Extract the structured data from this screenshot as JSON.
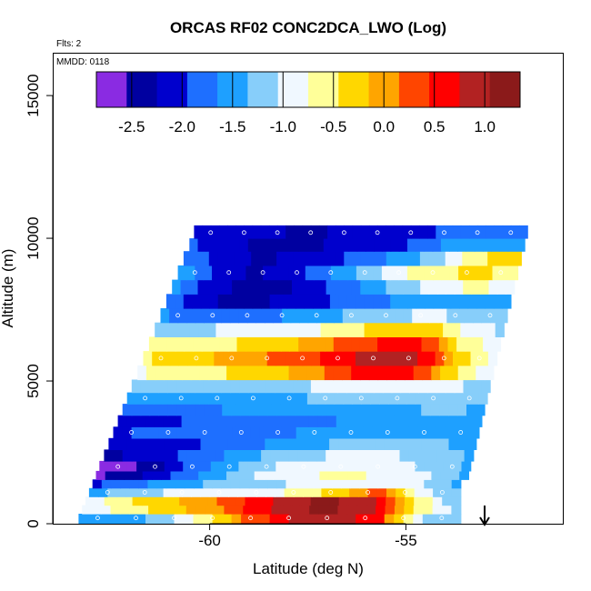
{
  "chart_data": {
    "type": "heatmap",
    "title": "ORCAS RF02 CONC2DCA_LWO (Log)",
    "annotations": [
      "Flts: 2",
      "MMDD: 0118"
    ],
    "xlabel": "Latitude (deg N)",
    "ylabel": "Altitude (m)",
    "xlim": [
      -64,
      -51
    ],
    "ylim": [
      0,
      16500
    ],
    "x_ticks": [
      -60,
      -55
    ],
    "y_ticks": [
      0,
      5000,
      10000,
      15000
    ],
    "x_tick_labels": [
      "-60",
      "-55"
    ],
    "y_tick_labels": [
      "0",
      "5000",
      "10000",
      "15000"
    ],
    "colorbar": {
      "range": [
        -2.85,
        1.35
      ],
      "ticks": [
        -2.5,
        -2.0,
        -1.5,
        -1.0,
        -0.5,
        0.0,
        0.5,
        1.0
      ],
      "tick_labels": [
        "-2.5",
        "-2.0",
        "-1.5",
        "-1.0",
        "-0.5",
        "0.0",
        "0.5",
        "1.0"
      ],
      "colors": [
        "#8A2BE2",
        "#0000A0",
        "#0000CD",
        "#1E6FFF",
        "#1EA0FF",
        "#87CEFA",
        "#F0F8FF",
        "#FFFF99",
        "#FFD700",
        "#FFA500",
        "#FF4500",
        "#FF0000",
        "#B22222",
        "#8B1A1A"
      ]
    },
    "layers": [
      {
        "alt": 200,
        "values": [
          -1.5,
          -1.5,
          -1.2,
          -0.5,
          0.2,
          0.8,
          1.0,
          0.6,
          -1.0,
          -1.3
        ]
      },
      {
        "alt": 500,
        "values": [
          -1.0,
          -0.6,
          -0.3,
          0.0,
          0.5,
          1.0,
          1.1,
          0.8,
          -0.5,
          -1.2
        ]
      },
      {
        "alt": 800,
        "values": [
          -0.9,
          -0.5,
          -0.2,
          0.1,
          0.5,
          1.0,
          1.1,
          0.7,
          -0.6,
          -1.3
        ]
      },
      {
        "alt": 1100,
        "values": [
          -1.5,
          -1.2,
          -1.0,
          -0.8,
          -0.9,
          -0.7,
          -0.3,
          0.3,
          -0.8,
          -1.4
        ]
      },
      {
        "alt": 1400,
        "values": [
          -2.0,
          -1.7,
          -1.5,
          -1.3,
          -1.2,
          -1.0,
          -0.9,
          -0.9,
          -1.0,
          -1.5
        ]
      },
      {
        "alt": 1700,
        "values": [
          -2.6,
          -2.3,
          -1.8,
          -1.4,
          -1.0,
          -0.8,
          -0.7,
          -0.8,
          -1.0,
          -1.4
        ]
      },
      {
        "alt": 2000,
        "values": [
          -2.8,
          -2.5,
          -2.0,
          -1.5,
          -1.1,
          -0.9,
          -0.8,
          -0.9,
          -1.1,
          -1.4
        ]
      },
      {
        "alt": 2400,
        "values": [
          -2.3,
          -2.2,
          -1.9,
          -1.6,
          -1.3,
          -1.1,
          -1.0,
          -1.0,
          -1.2,
          -1.4
        ]
      },
      {
        "alt": 2800,
        "values": [
          -2.2,
          -2.1,
          -2.0,
          -1.8,
          -1.6,
          -1.4,
          -1.3,
          -1.2,
          -1.3,
          -1.5
        ]
      },
      {
        "alt": 3200,
        "values": [
          -2.0,
          -1.9,
          -1.9,
          -1.8,
          -1.7,
          -1.6,
          -1.5,
          -1.4,
          -1.5,
          -1.6
        ]
      },
      {
        "alt": 3600,
        "values": [
          -2.1,
          -2.0,
          -1.9,
          -1.9,
          -1.8,
          -1.7,
          -1.6,
          -1.6,
          -1.4,
          -1.5
        ]
      },
      {
        "alt": 4000,
        "values": [
          -1.9,
          -1.8,
          -1.7,
          -1.6,
          -1.5,
          -1.5,
          -1.5,
          -1.4,
          -1.3,
          -1.4
        ]
      },
      {
        "alt": 4400,
        "values": [
          -1.6,
          -1.5,
          -1.4,
          -1.4,
          -1.4,
          -1.3,
          -1.3,
          -1.2,
          -1.1,
          -1.3
        ]
      },
      {
        "alt": 4800,
        "values": [
          -1.3,
          -1.2,
          -1.2,
          -1.2,
          -1.1,
          -1.0,
          -1.0,
          -0.9,
          -1.0,
          -1.2
        ]
      },
      {
        "alt": 5300,
        "values": [
          -0.8,
          -0.6,
          -0.5,
          -0.3,
          -0.1,
          0.3,
          0.6,
          0.5,
          -0.4,
          -1.0
        ]
      },
      {
        "alt": 5800,
        "values": [
          -0.5,
          -0.3,
          -0.1,
          0.1,
          0.3,
          0.6,
          0.9,
          0.8,
          -0.2,
          -0.9
        ]
      },
      {
        "alt": 6300,
        "values": [
          -0.7,
          -0.6,
          -0.5,
          -0.3,
          -0.1,
          0.2,
          0.5,
          0.5,
          -0.5,
          -1.0
        ]
      },
      {
        "alt": 6800,
        "values": [
          -1.2,
          -1.1,
          -1.0,
          -0.9,
          -0.8,
          -0.6,
          -0.3,
          -0.2,
          -0.8,
          -1.1
        ]
      },
      {
        "alt": 7300,
        "values": [
          -1.6,
          -1.8,
          -1.9,
          -1.7,
          -1.5,
          -1.3,
          -1.1,
          -1.0,
          -1.1,
          -1.2
        ]
      },
      {
        "alt": 7800,
        "values": [
          -1.7,
          -2.2,
          -2.4,
          -2.2,
          -2.0,
          -1.8,
          -1.6,
          -1.5,
          -1.5,
          -1.6
        ]
      },
      {
        "alt": 8300,
        "values": [
          -1.5,
          -2.1,
          -2.4,
          -2.3,
          -2.0,
          -1.6,
          -1.2,
          -0.9,
          -0.7,
          -0.9
        ]
      },
      {
        "alt": 8800,
        "values": [
          -1.4,
          -2.0,
          -2.3,
          -2.1,
          -1.7,
          -1.2,
          -0.8,
          -0.5,
          -0.4,
          -0.6
        ]
      },
      {
        "alt": 9300,
        "values": [
          -1.6,
          -2.1,
          -2.3,
          -2.2,
          -2.0,
          -1.8,
          -1.5,
          -1.0,
          -0.5,
          -0.2
        ]
      },
      {
        "alt": 9800,
        "values": [
          -1.9,
          -2.2,
          -2.3,
          -2.3,
          -2.2,
          -2.1,
          -1.9,
          -1.6,
          -1.4,
          -1.6
        ]
      },
      {
        "alt": 10200,
        "values": [
          -2.0,
          -2.1,
          -2.2,
          -2.3,
          -2.2,
          -2.1,
          -2.0,
          -1.9,
          -1.8,
          -1.9
        ]
      }
    ]
  }
}
